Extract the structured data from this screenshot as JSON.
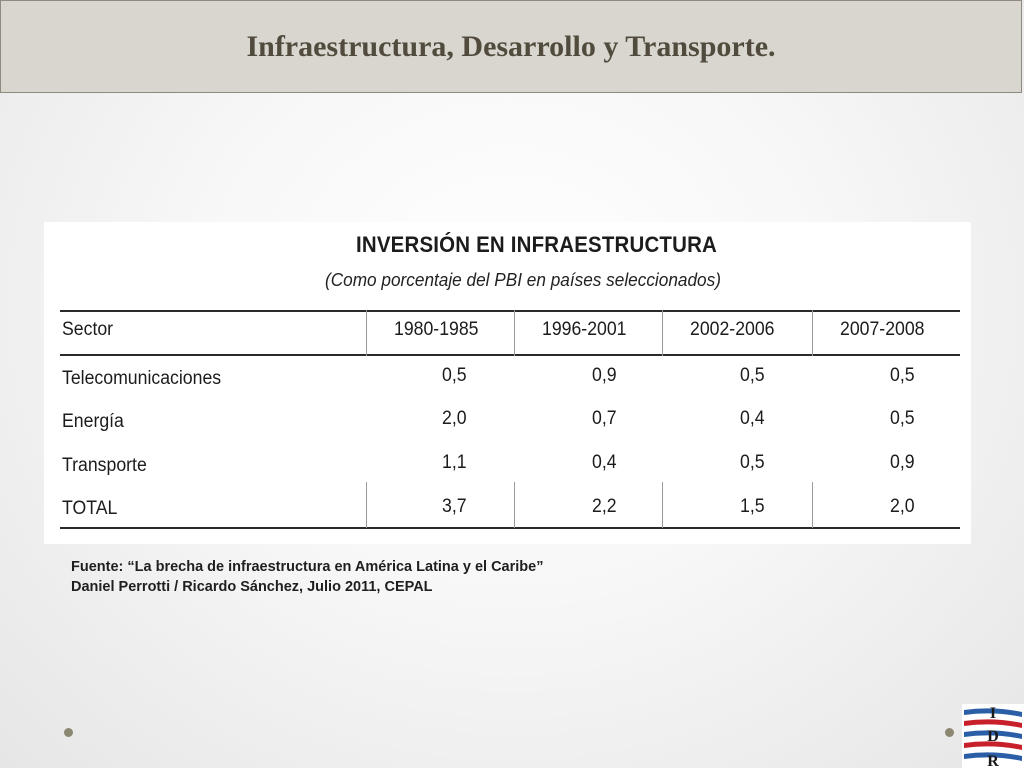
{
  "slide": {
    "title": "Infraestructura, Desarrollo y Transporte."
  },
  "table": {
    "title": "INVERSIÓN EN INFRAESTRUCTURA",
    "subtitle": "(Como porcentaje del PBI en países seleccionados)",
    "headers": [
      "Sector",
      "1980-1985",
      "1996-2001",
      "2002-2006",
      "2007-2008"
    ],
    "rows": [
      {
        "sector": "Telecomunicaciones",
        "values": [
          "0,5",
          "0,9",
          "0,5",
          "0,5"
        ]
      },
      {
        "sector": "Energía",
        "values": [
          "2,0",
          "0,7",
          "0,4",
          "0,5"
        ]
      },
      {
        "sector": "Transporte",
        "values": [
          "1,1",
          "0,4",
          "0,5",
          "0,9"
        ]
      },
      {
        "sector": "TOTAL",
        "values": [
          "3,7",
          "2,2",
          "1,5",
          "2,0"
        ]
      }
    ]
  },
  "source": {
    "line1": "Fuente: “La brecha de infraestructura en América Latina y el Caribe”",
    "line2": "Daniel Perrotti / Ricardo Sánchez, Julio 2011, CEPAL"
  },
  "logo": {
    "letters": [
      "I",
      "D",
      "R"
    ],
    "colors": {
      "red": "#c8202b",
      "blue": "#2a5fa8"
    }
  }
}
